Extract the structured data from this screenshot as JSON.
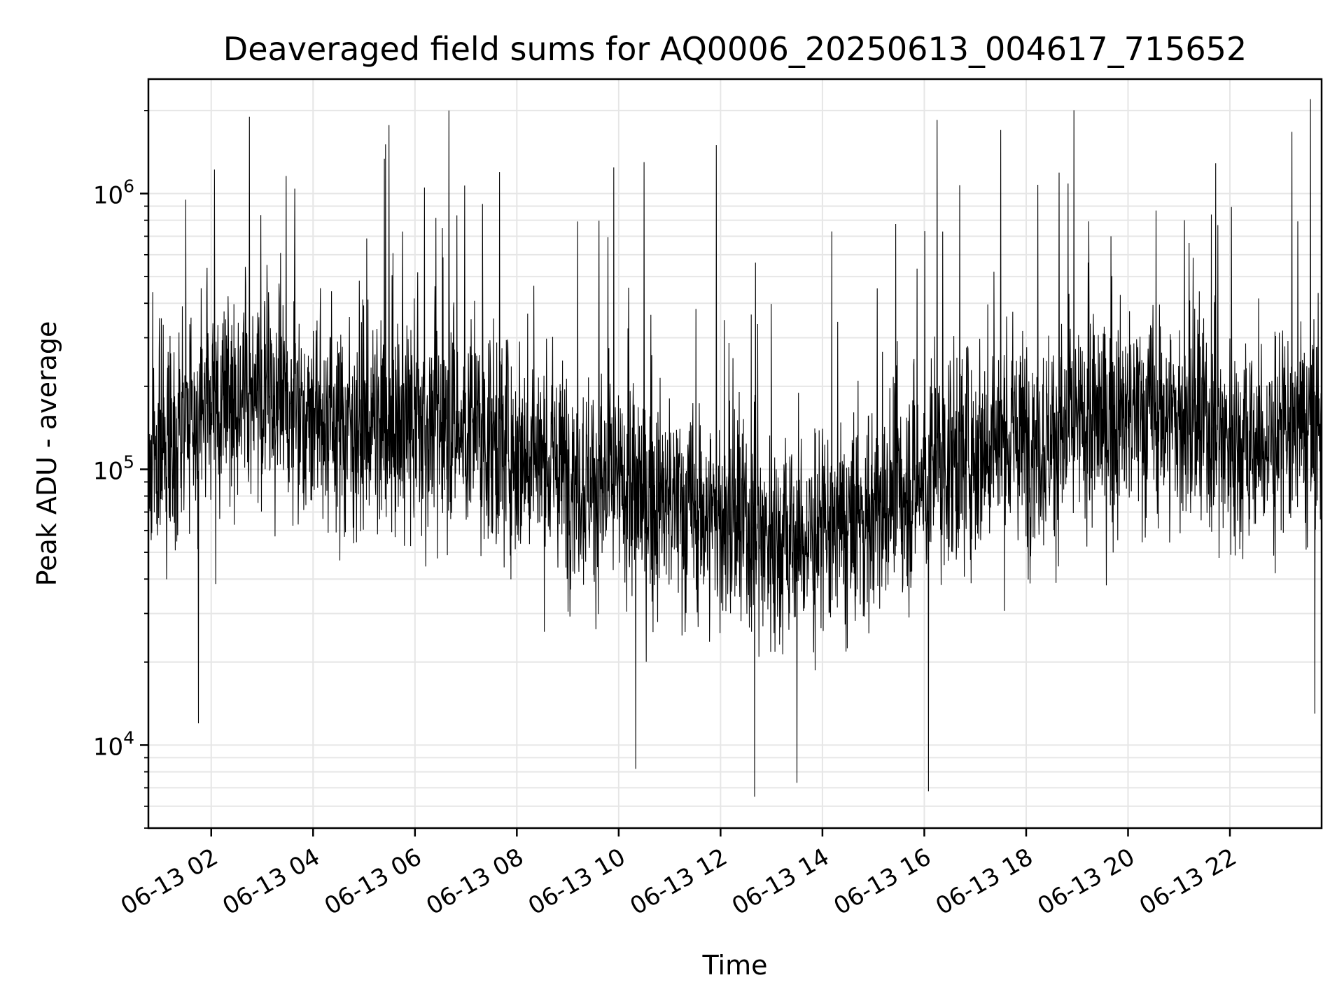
{
  "chart_data": {
    "type": "line",
    "title": "Deaveraged field sums for AQ0006_20250613_004617_715652",
    "xlabel": "Time",
    "ylabel": "Peak ADU - average",
    "yscale": "log",
    "ylim": [
      5000,
      2600000
    ],
    "xlim": [
      "2025-06-13 00:46",
      "2025-06-13 23:48"
    ],
    "x_ticks": [
      "06-13 02",
      "06-13 04",
      "06-13 06",
      "06-13 08",
      "06-13 10",
      "06-13 12",
      "06-13 14",
      "06-13 16",
      "06-13 18",
      "06-13 20",
      "06-13 22"
    ],
    "y_ticks": [
      {
        "base": "10",
        "exp": "4",
        "value": 10000
      },
      {
        "base": "10",
        "exp": "5",
        "value": 100000
      },
      {
        "base": "10",
        "exp": "6",
        "value": 1000000
      }
    ],
    "grid": true,
    "series": [
      {
        "color": "#000000",
        "envelope_hourly": {
          "hours": [
            0.8,
            1.5,
            2.0,
            2.8,
            3.5,
            4.5,
            5.5,
            6.5,
            7.5,
            8.5,
            9.5,
            10.5,
            11.5,
            12.5,
            13.5,
            14.5,
            15.5,
            16.5,
            17.5,
            18.5,
            19.5,
            20.5,
            21.5,
            22.5,
            23.5,
            23.8
          ],
          "median": [
            110000,
            150000,
            160000,
            200000,
            180000,
            150000,
            140000,
            145000,
            130000,
            110000,
            90000,
            80000,
            70000,
            60000,
            55000,
            60000,
            80000,
            110000,
            130000,
            130000,
            150000,
            160000,
            140000,
            120000,
            140000,
            130000
          ]
        },
        "peaks": [
          {
            "t": "2025-06-13 01:30",
            "y": 950000
          },
          {
            "t": "2025-06-13 02:45",
            "y": 1900000
          },
          {
            "t": "2025-06-13 06:40",
            "y": 2000000
          },
          {
            "t": "2025-06-13 10:30",
            "y": 1300000
          },
          {
            "t": "2025-06-13 11:55",
            "y": 1500000
          },
          {
            "t": "2025-06-13 16:15",
            "y": 1850000
          },
          {
            "t": "2025-06-13 17:30",
            "y": 1700000
          },
          {
            "t": "2025-06-13 23:35",
            "y": 2200000
          }
        ],
        "troughs": [
          {
            "t": "2025-06-13 01:45",
            "y": 12000
          },
          {
            "t": "2025-06-13 10:20",
            "y": 8200
          },
          {
            "t": "2025-06-13 12:40",
            "y": 6500
          },
          {
            "t": "2025-06-13 13:30",
            "y": 7300
          },
          {
            "t": "2025-06-13 16:05",
            "y": 6800
          },
          {
            "t": "2025-06-13 23:40",
            "y": 13000
          }
        ]
      }
    ]
  }
}
